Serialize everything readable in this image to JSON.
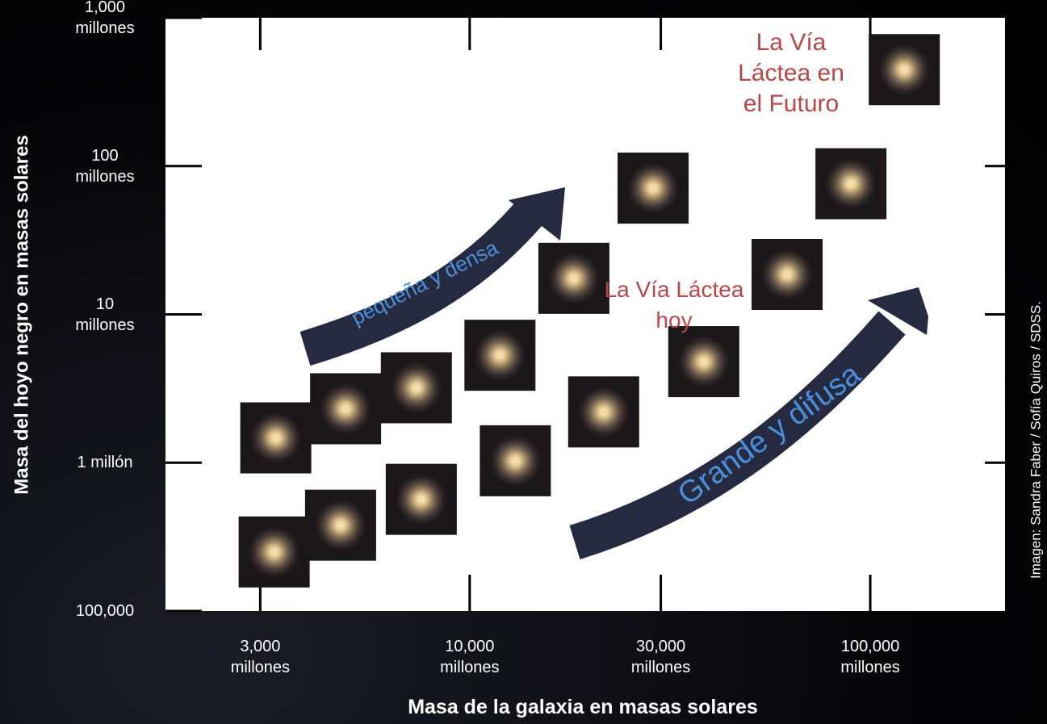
{
  "chart_data": {
    "type": "scatter",
    "xlabel": "Masa de la galaxia en masas solares",
    "ylabel": "Masa del hoyo negro en masas solares",
    "xscale": "log",
    "yscale": "log",
    "xlim": [
      1740,
      217000
    ],
    "ylim": [
      100000,
      1000000000
    ],
    "xticks": [
      {
        "value": 3000,
        "label": "3,000 millones"
      },
      {
        "value": 10000,
        "label": "10,000 millones"
      },
      {
        "value": 30000,
        "label": "30,000 millones"
      },
      {
        "value": 100000,
        "label": "100,000 millones"
      }
    ],
    "yticks": [
      {
        "value": 100000,
        "label": "100,000"
      },
      {
        "value": 1000000,
        "label": "1 millón"
      },
      {
        "value": 10000000,
        "label": "10 millones"
      },
      {
        "value": 100000000,
        "label": "100 millones"
      },
      {
        "value": 1000000000,
        "label": "1,000 millones"
      }
    ],
    "color": "#f4dca6",
    "x": [
      3280,
      4900,
      7360,
      11900,
      18200,
      28700,
      121600,
      89500,
      62000,
      38400,
      21600,
      13000,
      7570,
      4760,
      3250
    ],
    "y": [
      1470000,
      2310000,
      3200000,
      5300000,
      17500000,
      71000000,
      447000000,
      76000000,
      18600000,
      4800000,
      2200000,
      1030000,
      566000,
      379000,
      250000
    ],
    "annotations": [
      "La Vía Láctea en el Futuro",
      "La Vía Láctea hoy",
      "pequeña y densa",
      "Grande y difusa"
    ],
    "credit": "Imagen: Sandra Faber / Sofía Quiros / SDSS."
  }
}
